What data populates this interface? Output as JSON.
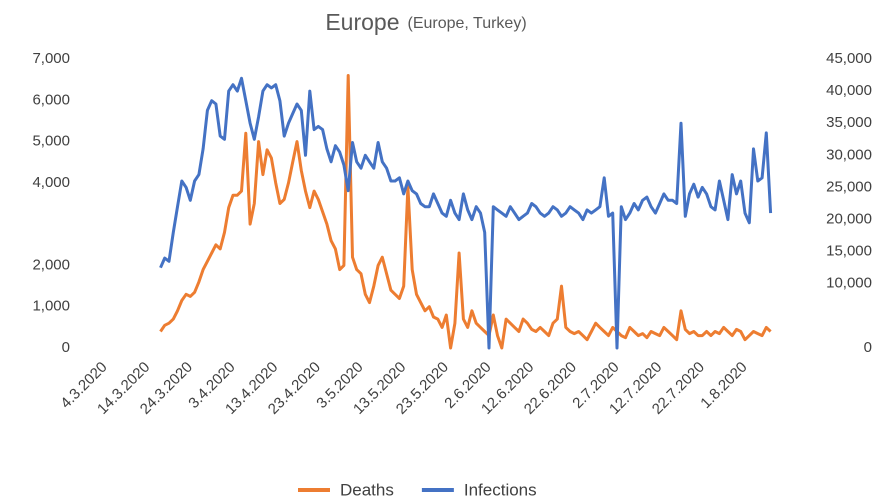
{
  "chart_data": {
    "type": "line",
    "title": "Europe",
    "subtitle": "(Europe, Turkey)",
    "categories": [
      "4.3.2020",
      null,
      null,
      null,
      null,
      null,
      null,
      null,
      null,
      null,
      "14.3.2020",
      null,
      null,
      null,
      null,
      null,
      null,
      null,
      null,
      null,
      "24.3.2020",
      null,
      null,
      null,
      null,
      null,
      null,
      null,
      null,
      null,
      "3.4.2020",
      null,
      null,
      null,
      null,
      null,
      null,
      null,
      null,
      null,
      "13.4.2020",
      null,
      null,
      null,
      null,
      null,
      null,
      null,
      null,
      null,
      "23.4.2020",
      null,
      null,
      null,
      null,
      null,
      null,
      null,
      null,
      null,
      "3.5.2020",
      null,
      null,
      null,
      null,
      null,
      null,
      null,
      null,
      null,
      "13.5.2020",
      null,
      null,
      null,
      null,
      null,
      null,
      null,
      null,
      null,
      "23.5.2020",
      null,
      null,
      null,
      null,
      null,
      null,
      null,
      null,
      null,
      "2.6.2020",
      null,
      null,
      null,
      null,
      null,
      null,
      null,
      null,
      null,
      "12.6.2020",
      null,
      null,
      null,
      null,
      null,
      null,
      null,
      null,
      null,
      "22.6.2020",
      null,
      null,
      null,
      null,
      null,
      null,
      null,
      null,
      null,
      "2.7.2020",
      null,
      null,
      null,
      null,
      null,
      null,
      null,
      null,
      null,
      "12.7.2020",
      null,
      null,
      null,
      null,
      null,
      null,
      null,
      null,
      null,
      "22.7.2020",
      null,
      null,
      null,
      null,
      null,
      null,
      null,
      null,
      null,
      "1.8.2020",
      null,
      null,
      null,
      null,
      null,
      null
    ],
    "series": [
      {
        "name": "Deaths",
        "color": "#ed7d31",
        "values": [
          null,
          null,
          null,
          null,
          null,
          null,
          null,
          null,
          null,
          null,
          null,
          null,
          null,
          400,
          550,
          600,
          700,
          900,
          1150,
          1300,
          1250,
          1350,
          1600,
          1900,
          2100,
          2300,
          2500,
          2400,
          2800,
          3400,
          3700,
          3700,
          3800,
          5200,
          3000,
          3500,
          5000,
          4200,
          4800,
          4600,
          4000,
          3500,
          3600,
          4000,
          4500,
          5000,
          4300,
          3800,
          3400,
          3800,
          3600,
          3300,
          3000,
          2600,
          2400,
          1900,
          2000,
          6600,
          2200,
          1900,
          1800,
          1300,
          1100,
          1500,
          2000,
          2200,
          1800,
          1400,
          1300,
          1200,
          1500,
          3900,
          1900,
          1300,
          1100,
          900,
          1000,
          750,
          700,
          500,
          800,
          0,
          600,
          2300,
          700,
          500,
          900,
          600,
          500,
          400,
          300,
          800,
          300,
          0,
          700,
          600,
          500,
          400,
          700,
          600,
          450,
          400,
          500,
          400,
          300,
          600,
          700,
          1500,
          500,
          400,
          350,
          400,
          300,
          200,
          400,
          600,
          500,
          400,
          300,
          500,
          400,
          300,
          250,
          500,
          400,
          300,
          350,
          250,
          400,
          350,
          300,
          500,
          400,
          300,
          200,
          900,
          450,
          350,
          400,
          300,
          300,
          400,
          300,
          400,
          350,
          500,
          400,
          300,
          450,
          400,
          200,
          300,
          400,
          350,
          300,
          500,
          400
        ]
      },
      {
        "name": "Infections",
        "color": "#4472c4",
        "axis": "y2",
        "values": [
          null,
          null,
          null,
          null,
          null,
          null,
          null,
          null,
          null,
          null,
          null,
          null,
          null,
          12500,
          14000,
          13500,
          18000,
          22000,
          26000,
          25000,
          23000,
          26000,
          27000,
          31000,
          37000,
          38500,
          38000,
          33000,
          32500,
          40000,
          41000,
          40000,
          42000,
          38500,
          35000,
          32500,
          36000,
          40000,
          41000,
          40500,
          41000,
          38500,
          33000,
          35000,
          36500,
          38000,
          37000,
          30000,
          40000,
          34000,
          34500,
          34000,
          31000,
          29000,
          31500,
          30500,
          28500,
          24500,
          32000,
          29000,
          28000,
          30000,
          29000,
          28000,
          32000,
          29000,
          28000,
          26000,
          26000,
          26500,
          24000,
          26000,
          24500,
          24000,
          22500,
          22000,
          22000,
          24000,
          22500,
          21000,
          20500,
          23000,
          21000,
          20000,
          24000,
          21500,
          20000,
          22000,
          21000,
          18000,
          0,
          22000,
          21500,
          21000,
          20500,
          22000,
          21000,
          20000,
          20500,
          21000,
          22500,
          22000,
          21000,
          20500,
          21000,
          22000,
          21500,
          20500,
          21000,
          22000,
          21500,
          21000,
          20000,
          21500,
          21000,
          21500,
          22000,
          26500,
          20500,
          21000,
          0,
          22000,
          20000,
          21000,
          22500,
          21500,
          23000,
          23500,
          22000,
          21000,
          22500,
          24000,
          23000,
          23000,
          22500,
          35000,
          20500,
          24000,
          25500,
          23500,
          25000,
          24000,
          22000,
          21500,
          26000,
          23000,
          20000,
          27000,
          24000,
          26000,
          21000,
          19500,
          31000,
          26000,
          26500,
          33500,
          21000
        ]
      }
    ],
    "ylim": [
      0,
      7000
    ],
    "yticks": [
      0,
      {
        "value": 1000,
        "label": "1,000"
      },
      {
        "value": 2000,
        "label": "2,000"
      },
      {
        "value": 4000,
        "label": "4,000"
      },
      {
        "value": 5000,
        "label": "5,000"
      },
      {
        "value": 6000,
        "label": "6,000"
      },
      {
        "value": 7000,
        "label": "7,000"
      }
    ],
    "y2lim": [
      0,
      45000
    ],
    "y2ticks": [
      0,
      {
        "value": 10000,
        "label": "10,000"
      },
      {
        "value": 15000,
        "label": "15,000"
      },
      {
        "value": 20000,
        "label": "20,000"
      },
      {
        "value": 25000,
        "label": "25,000"
      },
      {
        "value": 30000,
        "label": "30,000"
      },
      {
        "value": 35000,
        "label": "35,000"
      },
      {
        "value": 40000,
        "label": "40,000"
      },
      {
        "value": 45000,
        "label": "45,000"
      }
    ],
    "grid": false,
    "legend": "bottom"
  }
}
